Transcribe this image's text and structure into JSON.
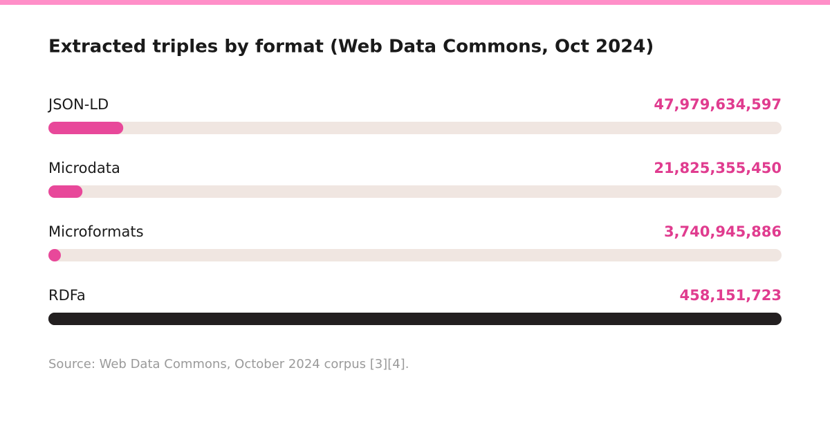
{
  "chart_data": {
    "type": "bar",
    "title": "Extracted triples by format (Web Data Commons, Oct 2024)",
    "categories": [
      "JSON-LD",
      "Microdata",
      "Microformats",
      "RDFa"
    ],
    "values": [
      47979634597,
      21825355450,
      3740945886,
      458151723
    ],
    "value_labels": [
      "47,979,634,597",
      "21,825,355,450",
      "3,740,945,886",
      "458,151,723"
    ],
    "colors": [
      "#e8489a",
      "#e8489a",
      "#e8489a",
      "#231f20"
    ],
    "track_colors": [
      "#f0e6e1",
      "#f0e6e1",
      "#f0e6e1",
      "#231f20"
    ],
    "label_color": "#e03c8f",
    "xlim": [
      0,
      470000000000
    ],
    "source": "Source: Web Data Commons, October 2024 corpus [3][4]."
  }
}
